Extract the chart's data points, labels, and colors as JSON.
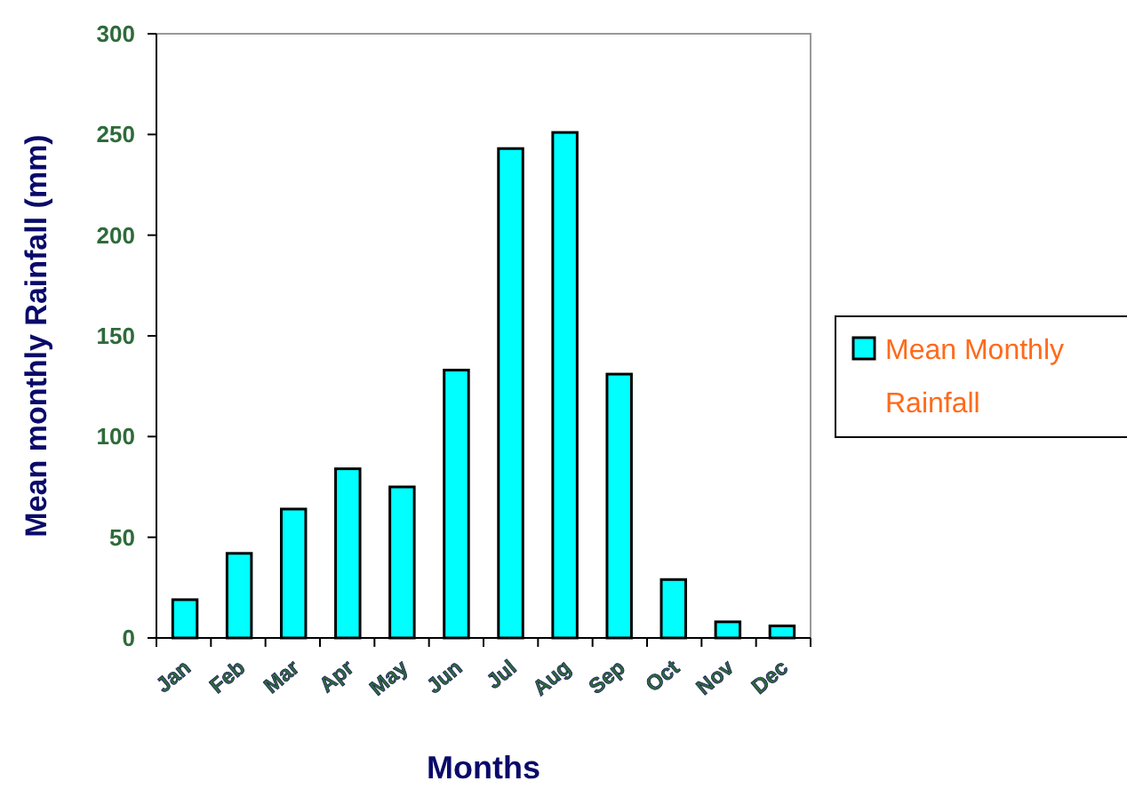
{
  "chart_data": {
    "type": "bar",
    "xlabel": "Months",
    "ylabel": "Mean monthly Rainfall (mm)",
    "categories": [
      "Jan",
      "Feb",
      "Mar",
      "Apr",
      "May",
      "Jun",
      "Jul",
      "Aug",
      "Sep",
      "Oct",
      "Nov",
      "Dec"
    ],
    "series": [
      {
        "name": "Mean Monthly Rainfall",
        "color": "#00ffff",
        "values": [
          19,
          42,
          64,
          84,
          75,
          133,
          243,
          251,
          131,
          29,
          8,
          6
        ]
      }
    ],
    "ylim": [
      0,
      300
    ],
    "yticks": [
      0,
      50,
      100,
      150,
      200,
      250,
      300
    ],
    "grid": false,
    "legend": "right"
  }
}
